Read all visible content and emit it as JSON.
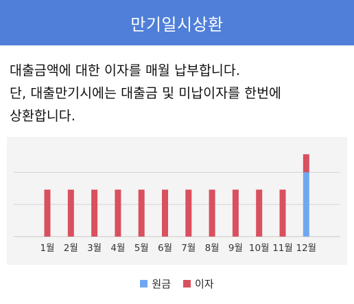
{
  "header": {
    "title": "만기일시상환"
  },
  "description": {
    "lines": [
      "대출금액에 대한 이자를 매월 납부합니다.",
      "단, 대출만기시에는 대출금 및 미납이자를 한번에",
      "상환합니다."
    ]
  },
  "colors": {
    "principal": "#6fa8f0",
    "interest": "#d9505e",
    "header": "#4f7fd8"
  },
  "chart_data": {
    "type": "bar",
    "stacked": true,
    "categories": [
      "1월",
      "2월",
      "3월",
      "4월",
      "5월",
      "6월",
      "7월",
      "8월",
      "9월",
      "10월",
      "11월",
      "12월"
    ],
    "series": [
      {
        "name": "원금",
        "values": [
          0,
          0,
          0,
          0,
          0,
          0,
          0,
          0,
          0,
          0,
          0,
          1
        ]
      },
      {
        "name": "이자",
        "values": [
          0.73,
          0.73,
          0.73,
          0.73,
          0.73,
          0.73,
          0.73,
          0.73,
          0.73,
          0.73,
          0.73,
          0.28
        ]
      }
    ],
    "ylim": [
      0,
      1.55
    ],
    "grid": true,
    "legend_position": "bottom"
  }
}
